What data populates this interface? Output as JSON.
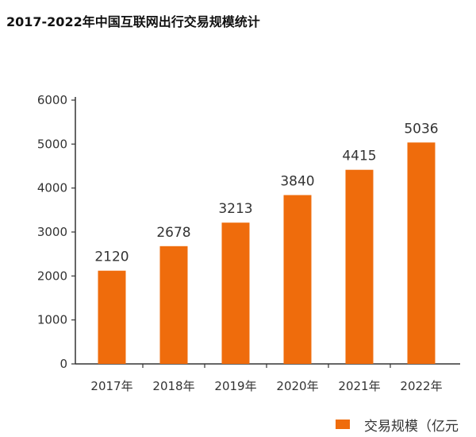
{
  "title": "2017-2022年中国互联网出行交易规模统计",
  "colors": {
    "bar": "#ef6c0c",
    "axis": "#333333"
  },
  "legend_label": "交易规模（亿元",
  "chart_data": {
    "type": "bar",
    "title": "2017-2022年中国互联网出行交易规模统计",
    "categories": [
      "2017年",
      "2018年",
      "2019年",
      "2020年",
      "2021年",
      "2022年"
    ],
    "series": [
      {
        "name": "交易规模（亿元",
        "values": [
          2120,
          2678,
          3213,
          3840,
          4415,
          5036
        ]
      }
    ],
    "data_labels": [
      "2120",
      "2678",
      "3213",
      "3840",
      "4415",
      "5036"
    ],
    "ylim": [
      0,
      6000
    ],
    "yticks": [
      0,
      1000,
      2000,
      3000,
      4000,
      5000,
      6000
    ],
    "ytick_labels": [
      "0",
      "1000",
      "2000",
      "3000",
      "4000",
      "5000",
      "6000"
    ],
    "grid": false,
    "legend_position": "bottom-right",
    "xlabel": "",
    "ylabel": ""
  }
}
